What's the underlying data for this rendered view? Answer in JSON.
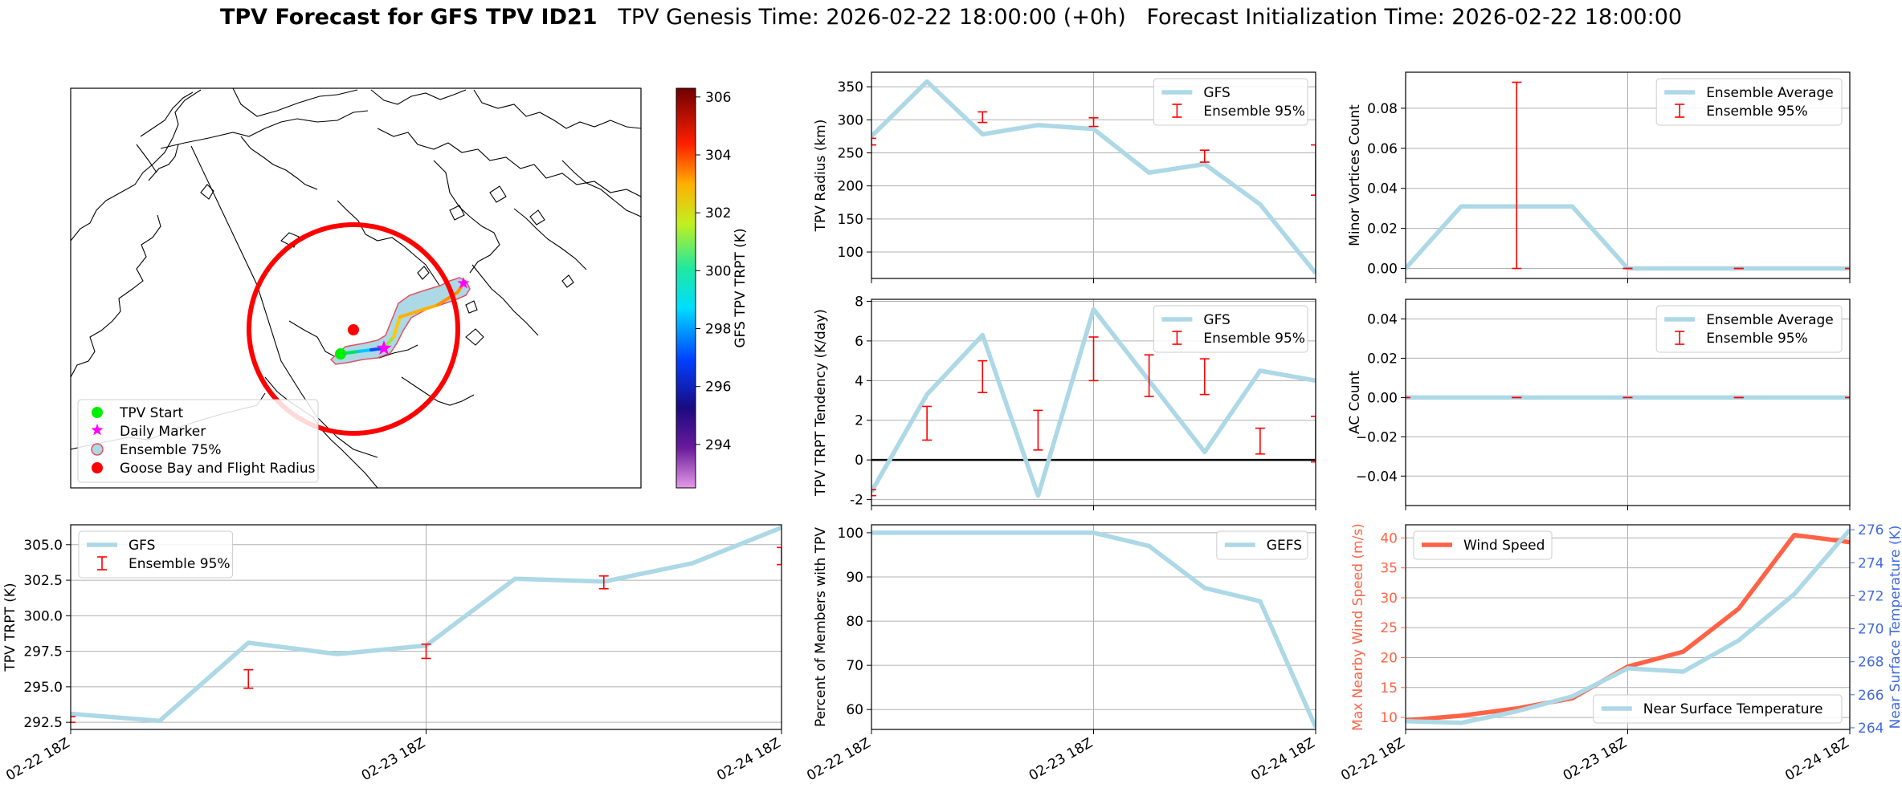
{
  "figure": {
    "title_bold": "TPV Forecast for GFS TPV ID21",
    "title_rest": "TPV Genesis Time: 2026-02-22 18:00:00 (+0h)   Forecast Initialization Time: 2026-02-22 18:00:00"
  },
  "map": {
    "legend": [
      "TPV Start",
      "Daily Marker",
      "Ensemble 75%",
      "Goose Bay and Flight Radius"
    ],
    "colorbar": {
      "label": "GFS TPV TRPT (K)",
      "ticks": [
        294,
        296,
        298,
        300,
        302,
        304,
        306
      ],
      "range": [
        292.5,
        306.3
      ]
    },
    "colors": {
      "circle": "#ff0000",
      "ensemble_fill": "#add8e6",
      "ensemble_edge": "#e0525f",
      "start": "#00ee00",
      "marker": "#ff00ff"
    }
  },
  "chart_data": [
    {
      "id": "radius",
      "type": "line",
      "ylabel": "TPV Radius (km)",
      "x": [
        0,
        1,
        2,
        3,
        4,
        5,
        6,
        7,
        8
      ],
      "ylim": [
        60,
        372
      ],
      "yticks": [
        100,
        150,
        200,
        250,
        300,
        350
      ],
      "xticks": [
        0,
        4,
        8
      ],
      "xticklabels": [],
      "legend": [
        "GFS",
        "Ensemble 95%"
      ],
      "series": [
        {
          "name": "GFS",
          "color": "#add8e6",
          "values": [
            275,
            358,
            278,
            292,
            286,
            220,
            233,
            172,
            68
          ]
        }
      ],
      "errorbars": [
        {
          "x": 0,
          "lo": 262,
          "hi": 272
        },
        {
          "x": 2,
          "lo": 296,
          "hi": 312
        },
        {
          "x": 4,
          "lo": 290,
          "hi": 303
        },
        {
          "x": 6,
          "lo": 236,
          "hi": 254
        },
        {
          "x": 8,
          "lo": 186,
          "hi": 262
        }
      ]
    },
    {
      "id": "tendency",
      "type": "line",
      "ylabel": "TPV TRPT Tendency (K/day)",
      "x": [
        0,
        1,
        2,
        3,
        4,
        5,
        6,
        7,
        8
      ],
      "ylim": [
        -2.3,
        8.1
      ],
      "yticks": [
        -2,
        0,
        2,
        4,
        6,
        8
      ],
      "xticks": [
        0,
        4,
        8
      ],
      "xticklabels": [],
      "legend": [
        "GFS",
        "Ensemble 95%"
      ],
      "zero_line": true,
      "series": [
        {
          "name": "GFS",
          "color": "#add8e6",
          "values": [
            -1.6,
            3.3,
            6.3,
            -1.8,
            7.6,
            4.0,
            0.4,
            4.5,
            4.0
          ]
        }
      ],
      "errorbars": [
        {
          "x": 0,
          "lo": -1.8,
          "hi": -1.5
        },
        {
          "x": 1,
          "lo": 1.0,
          "hi": 2.7
        },
        {
          "x": 2,
          "lo": 3.4,
          "hi": 5.0
        },
        {
          "x": 3,
          "lo": 0.5,
          "hi": 2.5
        },
        {
          "x": 4,
          "lo": 4.0,
          "hi": 6.2
        },
        {
          "x": 5,
          "lo": 3.2,
          "hi": 5.3
        },
        {
          "x": 6,
          "lo": 3.3,
          "hi": 5.1
        },
        {
          "x": 7,
          "lo": 0.3,
          "hi": 1.6
        },
        {
          "x": 8,
          "lo": -0.1,
          "hi": 2.2
        }
      ]
    },
    {
      "id": "minor",
      "type": "line",
      "ylabel": "Minor Vortices Count",
      "x": [
        0,
        1,
        2,
        3,
        4,
        5,
        6,
        7,
        8
      ],
      "ylim": [
        -0.005,
        0.098
      ],
      "yticks": [
        0.0,
        0.02,
        0.04,
        0.06,
        0.08
      ],
      "yticklabels": [
        "0.00",
        "0.02",
        "0.04",
        "0.06",
        "0.08"
      ],
      "xticks": [
        0,
        4,
        8
      ],
      "xticklabels": [],
      "legend": [
        "Ensemble Average",
        "Ensemble 95%"
      ],
      "series": [
        {
          "name": "Ensemble Average",
          "color": "#add8e6",
          "values": [
            0,
            0.031,
            0.031,
            0.031,
            0,
            0,
            0,
            0,
            0
          ]
        }
      ],
      "errorbars": [
        {
          "x": 2,
          "lo": 0,
          "hi": 0.093
        },
        {
          "x": 4,
          "lo": 0,
          "hi": 0
        },
        {
          "x": 6,
          "lo": 0,
          "hi": 0
        },
        {
          "x": 8,
          "lo": 0,
          "hi": 0
        }
      ]
    },
    {
      "id": "ac",
      "type": "line",
      "ylabel": "AC Count",
      "x": [
        0,
        1,
        2,
        3,
        4,
        5,
        6,
        7,
        8
      ],
      "ylim": [
        -0.055,
        0.05
      ],
      "yticks": [
        -0.04,
        -0.02,
        0.0,
        0.02,
        0.04
      ],
      "yticklabels": [
        "−0.04",
        "−0.02",
        "0.00",
        "0.02",
        "0.04"
      ],
      "xticks": [
        0,
        4,
        8
      ],
      "xticklabels": [],
      "legend": [
        "Ensemble Average",
        "Ensemble 95%"
      ],
      "series": [
        {
          "name": "Ensemble Average",
          "color": "#add8e6",
          "values": [
            0,
            0,
            0,
            0,
            0,
            0,
            0,
            0,
            0
          ]
        }
      ],
      "errorbars": [
        {
          "x": 0,
          "lo": 0,
          "hi": 0
        },
        {
          "x": 2,
          "lo": 0,
          "hi": 0
        },
        {
          "x": 4,
          "lo": 0,
          "hi": 0
        },
        {
          "x": 6,
          "lo": 0,
          "hi": 0
        },
        {
          "x": 8,
          "lo": 0,
          "hi": 0
        }
      ]
    },
    {
      "id": "trpt",
      "type": "line",
      "ylabel": "TPV TRPT (K)",
      "x": [
        0,
        1,
        2,
        3,
        4,
        5,
        6,
        7,
        8
      ],
      "ylim": [
        292.0,
        306.4
      ],
      "yticks": [
        292.5,
        295.0,
        297.5,
        300.0,
        302.5,
        305.0
      ],
      "yticklabels": [
        "292.5",
        "295.0",
        "297.5",
        "300.0",
        "302.5",
        "305.0"
      ],
      "xticks": [
        0,
        4,
        8
      ],
      "xticklabels": [
        "02-22 18Z",
        "02-23 18Z",
        "02-24 18Z"
      ],
      "legend": [
        "GFS",
        "Ensemble 95%"
      ],
      "series": [
        {
          "name": "GFS",
          "color": "#add8e6",
          "values": [
            293.1,
            292.6,
            298.1,
            297.3,
            297.9,
            302.6,
            302.4,
            303.7,
            306.2
          ]
        }
      ],
      "errorbars": [
        {
          "x": 0,
          "lo": 292.5,
          "hi": 292.9
        },
        {
          "x": 2,
          "lo": 294.9,
          "hi": 296.2
        },
        {
          "x": 4,
          "lo": 297.0,
          "hi": 298.0
        },
        {
          "x": 6,
          "lo": 301.9,
          "hi": 302.8
        },
        {
          "x": 8,
          "lo": 303.6,
          "hi": 304.8
        }
      ]
    },
    {
      "id": "percent",
      "type": "line",
      "ylabel": "Percent of Members with TPV",
      "x": [
        0,
        1,
        2,
        3,
        4,
        5,
        6,
        7,
        8
      ],
      "ylim": [
        55.5,
        101.8
      ],
      "yticks": [
        60,
        70,
        80,
        90,
        100
      ],
      "xticks": [
        0,
        4,
        8
      ],
      "xticklabels": [
        "02-22 18Z",
        "02-23 18Z",
        "02-24 18Z"
      ],
      "legend": [
        "GEFS"
      ],
      "series": [
        {
          "name": "GEFS",
          "color": "#add8e6",
          "values": [
            100,
            100,
            100,
            100,
            100,
            97,
            87.5,
            84.5,
            56
          ]
        }
      ],
      "errorbars": []
    },
    {
      "id": "wind",
      "type": "line",
      "ylabel": "Max Nearby Wind Speed (m/s)",
      "y2label": "Near Surface Temperature (K)",
      "x": [
        0,
        1,
        2,
        3,
        4,
        5,
        6,
        7,
        8
      ],
      "ylim": [
        8.0,
        42.2
      ],
      "yticks": [
        10,
        15,
        20,
        25,
        30,
        35,
        40
      ],
      "y2lim": [
        263.9,
        276.3
      ],
      "y2ticks": [
        264,
        266,
        268,
        270,
        272,
        274,
        276
      ],
      "xticks": [
        0,
        4,
        8
      ],
      "xticklabels": [
        "02-22 18Z",
        "02-23 18Z",
        "02-24 18Z"
      ],
      "legend": [
        "Wind Speed"
      ],
      "legend2": [
        "Near Surface Temperature"
      ],
      "series": [
        {
          "name": "Wind Speed",
          "color": "#ff6347",
          "axis": "left",
          "values": [
            9.5,
            10.3,
            11.5,
            13.2,
            18.5,
            21.0,
            28.2,
            40.5,
            39.3
          ]
        },
        {
          "name": "Near Surface Temperature",
          "color": "#add8e6",
          "axis": "right",
          "values": [
            264.4,
            264.3,
            265.0,
            265.9,
            267.6,
            267.4,
            269.3,
            272.1,
            276.0
          ]
        }
      ],
      "errorbars": []
    }
  ]
}
